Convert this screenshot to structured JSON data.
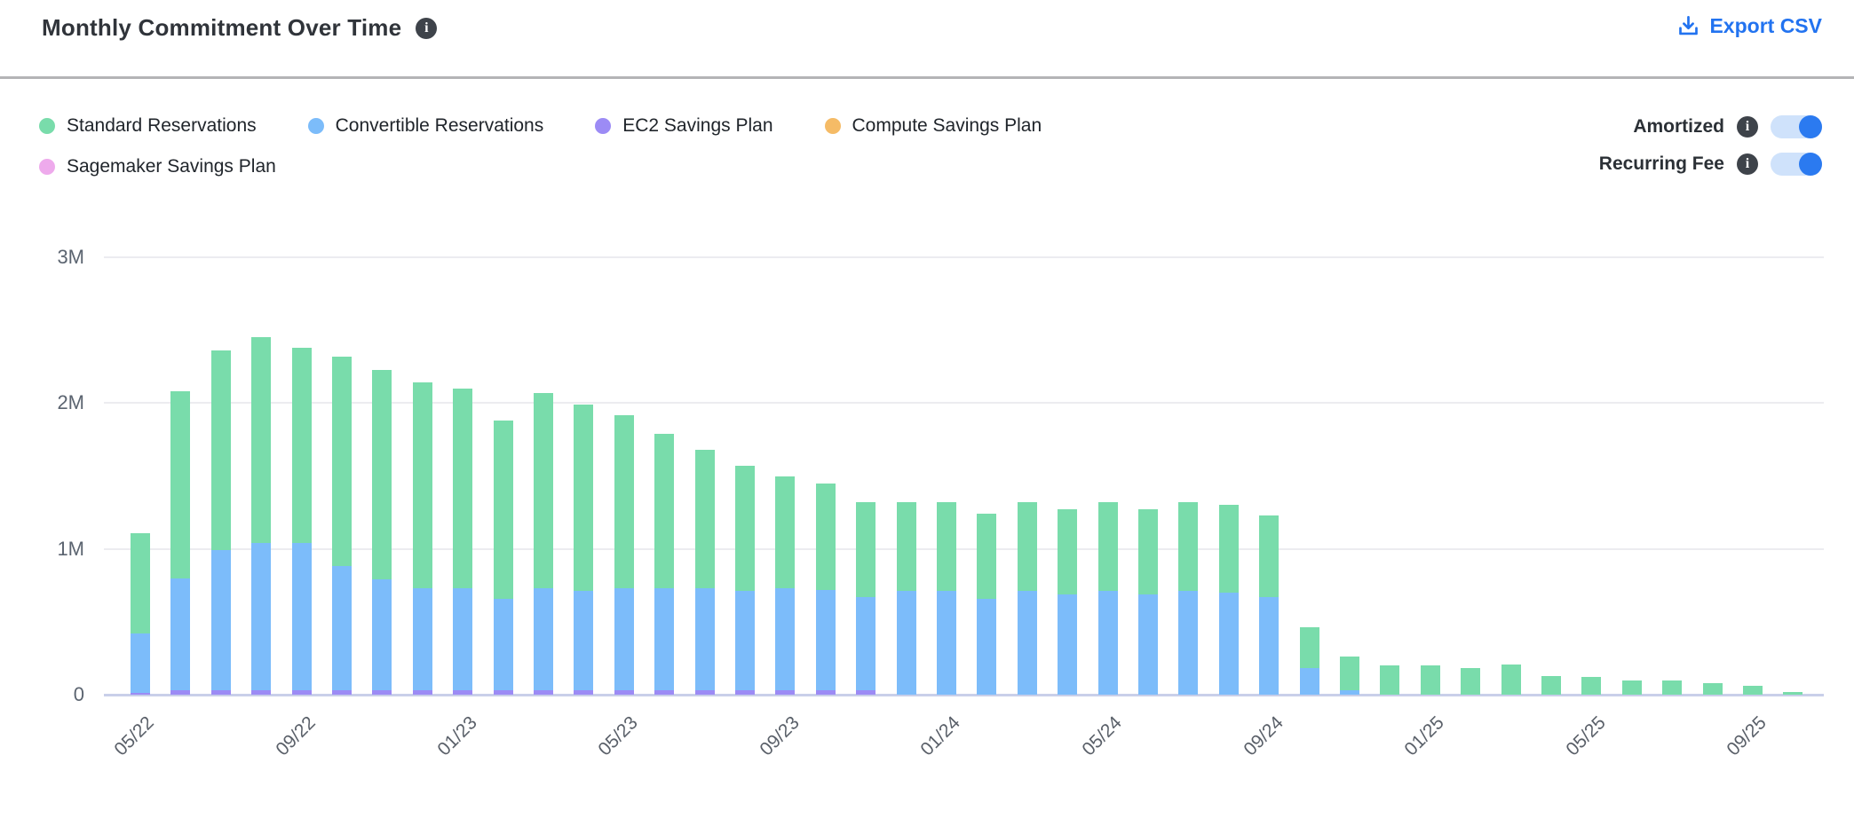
{
  "header": {
    "title": "Monthly Commitment Over Time",
    "export_label": "Export CSV"
  },
  "legend": [
    {
      "label": "Standard Reservations",
      "color": "#79dcab"
    },
    {
      "label": "Convertible Reservations",
      "color": "#7cbcfa"
    },
    {
      "label": "EC2 Savings Plan",
      "color": "#9c8bf5"
    },
    {
      "label": "Compute Savings Plan",
      "color": "#f5bb66"
    },
    {
      "label": "Sagemaker Savings Plan",
      "color": "#eeaaec"
    }
  ],
  "toggles": [
    {
      "label": "Amortized",
      "state": "on"
    },
    {
      "label": "Recurring Fee",
      "state": "on"
    }
  ],
  "chart_data": {
    "type": "bar",
    "stacked": true,
    "unit": "M",
    "ylim": [
      0,
      3
    ],
    "yticks": [
      {
        "label": "0",
        "value": 0
      },
      {
        "label": "1M",
        "value": 1
      },
      {
        "label": "2M",
        "value": 2
      },
      {
        "label": "3M",
        "value": 3
      }
    ],
    "x_tick_every": 4,
    "x": [
      "05/22",
      "06/22",
      "07/22",
      "08/22",
      "09/22",
      "10/22",
      "11/22",
      "12/22",
      "01/23",
      "02/23",
      "03/23",
      "04/23",
      "05/23",
      "06/23",
      "07/23",
      "08/23",
      "09/23",
      "10/23",
      "11/23",
      "12/23",
      "01/24",
      "02/24",
      "03/24",
      "04/24",
      "05/24",
      "06/24",
      "07/24",
      "08/24",
      "09/24",
      "10/24",
      "11/24",
      "12/24",
      "01/25",
      "02/25",
      "03/25",
      "04/25",
      "05/25",
      "06/25",
      "07/25",
      "08/25",
      "09/25",
      "10/25"
    ],
    "series": [
      {
        "name": "Sagemaker Savings Plan",
        "color": "#eeaaec",
        "values": [
          0,
          0,
          0,
          0,
          0,
          0,
          0,
          0,
          0,
          0,
          0,
          0,
          0,
          0,
          0,
          0,
          0,
          0,
          0,
          0,
          0,
          0,
          0,
          0,
          0,
          0,
          0,
          0,
          0,
          0,
          0,
          0,
          0,
          0,
          0,
          0,
          0,
          0,
          0,
          0,
          0,
          0
        ]
      },
      {
        "name": "Compute Savings Plan",
        "color": "#f5bb66",
        "values": [
          0,
          0,
          0,
          0,
          0,
          0,
          0,
          0,
          0,
          0,
          0,
          0,
          0,
          0,
          0,
          0,
          0,
          0,
          0,
          0,
          0,
          0,
          0,
          0,
          0,
          0,
          0,
          0,
          0,
          0,
          0,
          0,
          0,
          0,
          0,
          0,
          0,
          0,
          0,
          0,
          0,
          0
        ]
      },
      {
        "name": "EC2 Savings Plan",
        "color": "#9c8bf5",
        "values": [
          0.01,
          0.03,
          0.03,
          0.03,
          0.03,
          0.03,
          0.03,
          0.03,
          0.03,
          0.03,
          0.03,
          0.03,
          0.03,
          0.03,
          0.03,
          0.03,
          0.03,
          0.03,
          0.03,
          0,
          0,
          0,
          0,
          0,
          0,
          0,
          0,
          0,
          0,
          0,
          0,
          0,
          0,
          0,
          0,
          0,
          0,
          0,
          0,
          0,
          0,
          0
        ]
      },
      {
        "name": "Convertible Reservations",
        "color": "#7cbcfa",
        "values": [
          0.41,
          0.77,
          0.96,
          1.01,
          1.01,
          0.85,
          0.76,
          0.7,
          0.7,
          0.63,
          0.7,
          0.68,
          0.7,
          0.7,
          0.7,
          0.68,
          0.7,
          0.69,
          0.64,
          0.71,
          0.71,
          0.66,
          0.71,
          0.69,
          0.71,
          0.69,
          0.71,
          0.7,
          0.67,
          0.18,
          0.03,
          0,
          0,
          0,
          0,
          0,
          0,
          0,
          0,
          0,
          0,
          0
        ]
      },
      {
        "name": "Standard Reservations",
        "color": "#79dcab",
        "values": [
          0.69,
          1.28,
          1.37,
          1.41,
          1.34,
          1.44,
          1.44,
          1.41,
          1.37,
          1.22,
          1.34,
          1.28,
          1.19,
          1.06,
          0.95,
          0.86,
          0.77,
          0.73,
          0.65,
          0.61,
          0.61,
          0.58,
          0.61,
          0.58,
          0.61,
          0.58,
          0.61,
          0.6,
          0.56,
          0.28,
          0.23,
          0.2,
          0.2,
          0.18,
          0.21,
          0.13,
          0.12,
          0.1,
          0.1,
          0.08,
          0.06,
          0.02
        ]
      }
    ],
    "title": "Monthly Commitment Over Time",
    "xlabel": "",
    "ylabel": "",
    "legend_position": "top-left",
    "grid": true
  },
  "colors": {
    "accent_blue": "#2273f0",
    "toggle_track": "#cfe2fb",
    "toggle_knob": "#2b7af0",
    "gridline": "#ececf0",
    "axis_baseline": "#c9cfe9",
    "info_icon_bg": "#3e434a"
  }
}
